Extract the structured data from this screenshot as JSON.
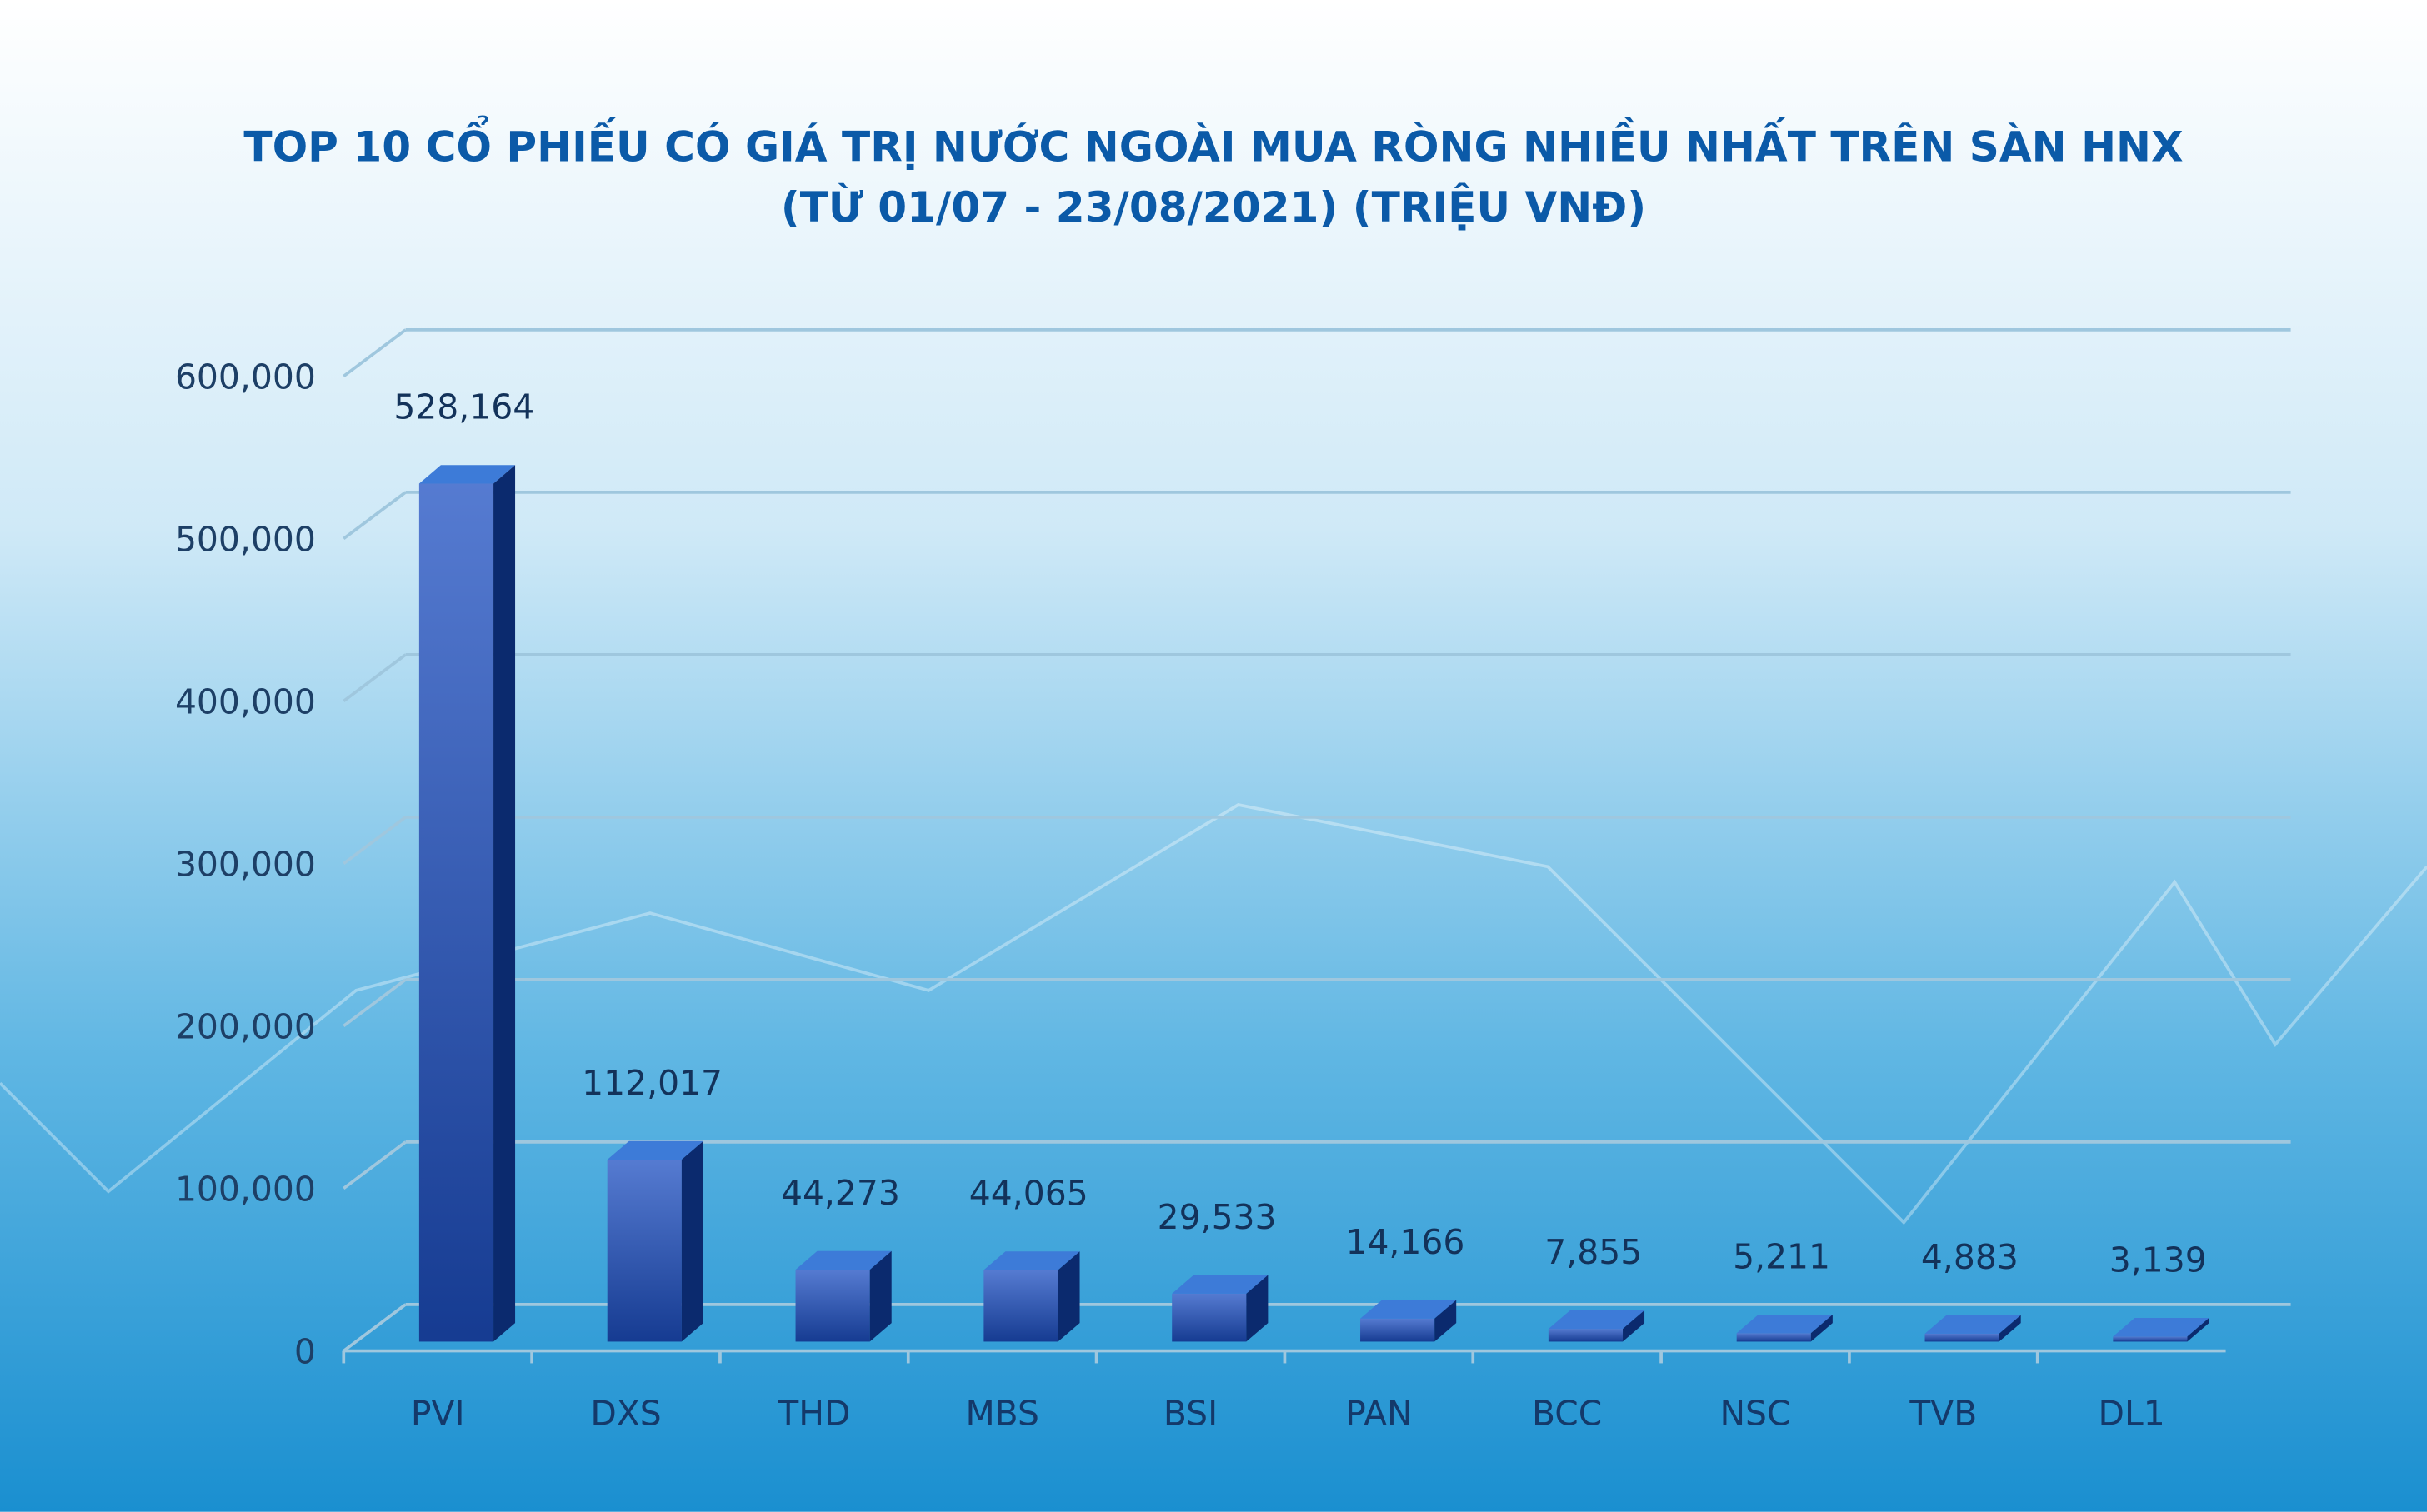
{
  "chart_data": {
    "type": "bar3d",
    "title": "TOP 10 CỔ PHIẾU CÓ GIÁ TRỊ NƯỚC NGOÀI MUA RÒNG NHIỀU NHẤT TRÊN SÀN HNX",
    "subtitle": "(TỪ 01/07 - 23/08/2021) (TRIỆU VNĐ)",
    "categories": [
      "PVI",
      "DXS",
      "THD",
      "MBS",
      "BSI",
      "PAN",
      "BCC",
      "NSC",
      "TVB",
      "DL1"
    ],
    "values": [
      528164,
      112017,
      44273,
      44065,
      29533,
      14166,
      7855,
      5211,
      4883,
      3139
    ],
    "value_labels": [
      "528,164",
      "112,017",
      "44,273",
      "44,065",
      "29,533",
      "14,166",
      "7,855",
      "5,211",
      "4,883",
      "3,139"
    ],
    "color": "#1d4fc2",
    "ylim": [
      0,
      600000
    ],
    "yticks": [
      0,
      {
        "value": 100000,
        "label": "100,000"
      },
      {
        "value": 200000,
        "label": "200,000"
      },
      {
        "value": 300000,
        "label": "300,000"
      },
      {
        "value": 400000,
        "label": "400,000"
      },
      {
        "value": 500000,
        "label": "500,000"
      },
      {
        "value": 600000,
        "label": "600,000"
      }
    ],
    "grid": true
  }
}
